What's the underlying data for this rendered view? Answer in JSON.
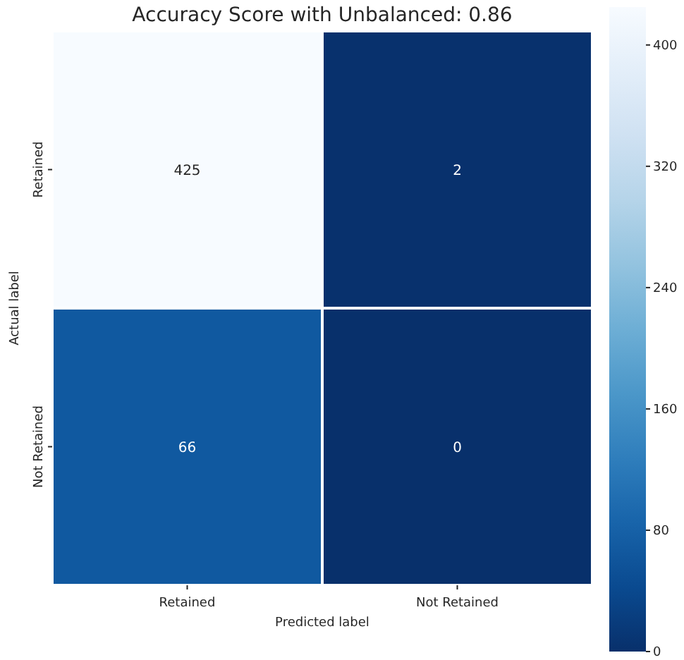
{
  "chart_data": {
    "type": "heatmap",
    "title": "Accuracy Score with Unbalanced: 0.86",
    "xlabel": "Predicted label",
    "ylabel": "Actual label",
    "categories": [
      "Retained",
      "Not Retained"
    ],
    "y_categories": [
      "Retained",
      "Not Retained"
    ],
    "cells": [
      [
        425,
        2
      ],
      [
        66,
        0
      ]
    ],
    "clim": [
      0,
      425
    ],
    "cticks": [
      0,
      80,
      160,
      240,
      320,
      400
    ],
    "data_labels": true
  }
}
